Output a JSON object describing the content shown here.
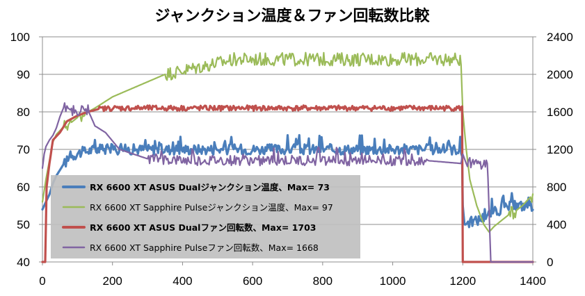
{
  "chart_data": {
    "type": "line",
    "title": "ジャンクション温度＆ファン回転数比較",
    "xlabel": "",
    "ylabel": "",
    "ylabel_right": "",
    "xlim": [
      0,
      1400
    ],
    "ylim": [
      40,
      100
    ],
    "ylim_right": [
      0,
      2400
    ],
    "x_ticks": [
      "0",
      "200",
      "400",
      "600",
      "800",
      "1000",
      "1200",
      "1400"
    ],
    "y_ticks": [
      "40",
      "50",
      "60",
      "70",
      "80",
      "90",
      "100"
    ],
    "y_right_ticks": [
      "0",
      "400",
      "800",
      "1200",
      "1600",
      "2000",
      "2400"
    ],
    "legend_position": "bottom-left",
    "series": [
      {
        "name": "RX 6600 XT ASUS Dualジャンクション温度、Max= 73",
        "axis": "left",
        "color": "#4a7ebb",
        "bold": true,
        "points": [
          [
            0,
            54
          ],
          [
            10,
            56
          ],
          [
            20,
            58
          ],
          [
            30,
            61
          ],
          [
            40,
            63
          ],
          [
            50,
            64.5
          ],
          [
            60,
            66
          ],
          [
            70,
            67
          ],
          [
            80,
            68
          ],
          [
            100,
            69
          ],
          [
            150,
            70
          ],
          [
            200,
            70
          ],
          [
            300,
            70
          ],
          [
            400,
            70
          ],
          [
            500,
            70
          ],
          [
            600,
            70
          ],
          [
            700,
            70
          ],
          [
            800,
            70
          ],
          [
            900,
            70
          ],
          [
            1000,
            70
          ],
          [
            1100,
            70
          ],
          [
            1190,
            70
          ],
          [
            1198,
            69
          ],
          [
            1200,
            55
          ],
          [
            1205,
            50
          ],
          [
            1215,
            50.5
          ],
          [
            1240,
            51
          ],
          [
            1260,
            52
          ],
          [
            1280,
            53
          ],
          [
            1310,
            54
          ],
          [
            1340,
            55
          ],
          [
            1360,
            55
          ],
          [
            1400,
            55
          ]
        ]
      },
      {
        "name": "RX 6600 XT Sapphire Pulseジャンクション温度、Max= 97",
        "axis": "left",
        "color": "#9bbb59",
        "bold": false,
        "points": [
          [
            0,
            56
          ],
          [
            10,
            62
          ],
          [
            20,
            67
          ],
          [
            30,
            72
          ],
          [
            40,
            74
          ],
          [
            60,
            76
          ],
          [
            80,
            77
          ],
          [
            100,
            78.5
          ],
          [
            120,
            79.5
          ],
          [
            150,
            81
          ],
          [
            200,
            84
          ],
          [
            250,
            86
          ],
          [
            300,
            88
          ],
          [
            350,
            90
          ],
          [
            400,
            91
          ],
          [
            450,
            92
          ],
          [
            500,
            93
          ],
          [
            550,
            94
          ],
          [
            600,
            94
          ],
          [
            700,
            94
          ],
          [
            800,
            94
          ],
          [
            900,
            94
          ],
          [
            1000,
            94
          ],
          [
            1100,
            94
          ],
          [
            1190,
            94
          ],
          [
            1195,
            93
          ],
          [
            1200,
            80
          ],
          [
            1210,
            70
          ],
          [
            1220,
            62
          ],
          [
            1240,
            55
          ],
          [
            1260,
            50
          ],
          [
            1275,
            48
          ],
          [
            1290,
            49.5
          ],
          [
            1310,
            51
          ],
          [
            1330,
            52.5
          ],
          [
            1350,
            53.5
          ],
          [
            1370,
            55
          ],
          [
            1390,
            57
          ],
          [
            1400,
            58
          ]
        ]
      },
      {
        "name": "RX 6600 XT ASUS Dualファン回転数、Max= 1703",
        "axis": "right",
        "color": "#c0504d",
        "bold": true,
        "points": [
          [
            0,
            0
          ],
          [
            8,
            0
          ],
          [
            12,
            800
          ],
          [
            20,
            1050
          ],
          [
            30,
            1300
          ],
          [
            40,
            1340
          ],
          [
            50,
            1380
          ],
          [
            70,
            1500
          ],
          [
            100,
            1560
          ],
          [
            130,
            1600
          ],
          [
            160,
            1630
          ],
          [
            200,
            1640
          ],
          [
            300,
            1640
          ],
          [
            400,
            1640
          ],
          [
            500,
            1640
          ],
          [
            600,
            1640
          ],
          [
            700,
            1640
          ],
          [
            800,
            1640
          ],
          [
            900,
            1640
          ],
          [
            1000,
            1640
          ],
          [
            1100,
            1640
          ],
          [
            1198,
            1640
          ],
          [
            1200,
            0
          ],
          [
            1400,
            0
          ]
        ]
      },
      {
        "name": "RX 6600 XT Sapphire Pulseファン回転数、Max= 1668",
        "axis": "right",
        "color": "#8064a2",
        "bold": false,
        "points": [
          [
            0,
            1000
          ],
          [
            5,
            1150
          ],
          [
            10,
            1230
          ],
          [
            20,
            1300
          ],
          [
            30,
            1350
          ],
          [
            40,
            1430
          ],
          [
            50,
            1550
          ],
          [
            60,
            1640
          ],
          [
            70,
            1650
          ],
          [
            80,
            1620
          ],
          [
            100,
            1610
          ],
          [
            130,
            1620
          ],
          [
            150,
            1450
          ],
          [
            180,
            1380
          ],
          [
            220,
            1200
          ],
          [
            260,
            1150
          ],
          [
            300,
            1100
          ],
          [
            400,
            1080
          ],
          [
            500,
            1080
          ],
          [
            600,
            1080
          ],
          [
            700,
            1080
          ],
          [
            800,
            1080
          ],
          [
            900,
            1080
          ],
          [
            1000,
            1080
          ],
          [
            1100,
            1080
          ],
          [
            1195,
            1050
          ],
          [
            1200,
            1150
          ],
          [
            1210,
            1050
          ],
          [
            1220,
            1050
          ],
          [
            1250,
            1040
          ],
          [
            1270,
            1050
          ],
          [
            1272,
            900
          ],
          [
            1280,
            0
          ],
          [
            1400,
            0
          ]
        ]
      }
    ]
  }
}
